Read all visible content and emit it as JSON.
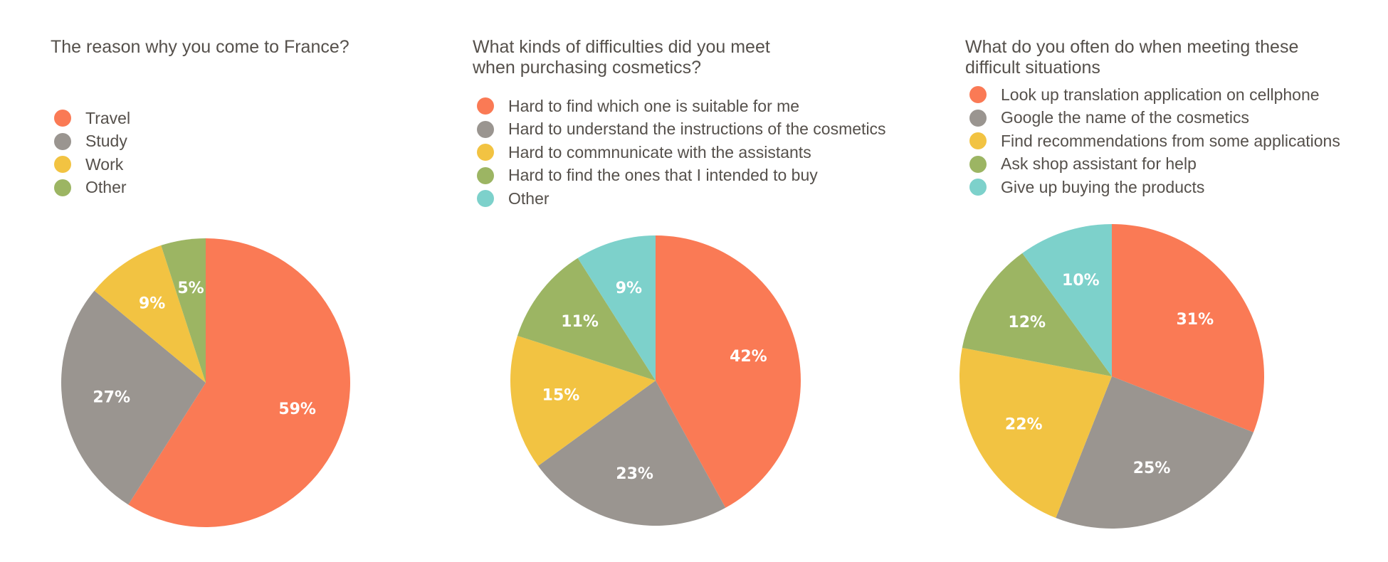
{
  "colors": {
    "orange": "#fa7a55",
    "gray": "#9a9590",
    "yellow": "#f2c342",
    "green": "#9cb563",
    "teal": "#7dd1cb"
  },
  "chart_data": [
    {
      "type": "pie",
      "title": "The reason why you come to France?",
      "legend_position": "top-left",
      "slices": [
        {
          "label": "Travel",
          "value": 59,
          "value_label": "59%",
          "color": "#fa7a55"
        },
        {
          "label": "Study",
          "value": 27,
          "value_label": "27%",
          "color": "#9a9590"
        },
        {
          "label": "Work",
          "value": 9,
          "value_label": "9%",
          "color": "#f2c342"
        },
        {
          "label": "Other",
          "value": 5,
          "value_label": "5%",
          "color": "#9cb563"
        }
      ]
    },
    {
      "type": "pie",
      "title": "What kinds of difficulties did you meet\nwhen purchasing cosmetics?",
      "legend_position": "top-left",
      "slices": [
        {
          "label": "Hard to find which one is suitable for me",
          "value": 42,
          "value_label": "42%",
          "color": "#fa7a55"
        },
        {
          "label": "Hard to understand the instructions of the cosmetics",
          "value": 23,
          "value_label": "23%",
          "color": "#9a9590"
        },
        {
          "label": "Hard to commnunicate with the assistants",
          "value": 15,
          "value_label": "15%",
          "color": "#f2c342"
        },
        {
          "label": "Hard to find the ones that I intended to buy",
          "value": 11,
          "value_label": "11%",
          "color": "#9cb563"
        },
        {
          "label": "Other",
          "value": 9,
          "value_label": "9%",
          "color": "#7dd1cb"
        }
      ]
    },
    {
      "type": "pie",
      "title": "What do you often do when meeting these\ndifficult situations",
      "legend_position": "top-left",
      "slices": [
        {
          "label": "Look up translation application on cellphone",
          "value": 31,
          "value_label": "31%",
          "color": "#fa7a55"
        },
        {
          "label": "Google the name of the cosmetics",
          "value": 25,
          "value_label": "25%",
          "color": "#9a9590"
        },
        {
          "label": "Find recommendations from some applications",
          "value": 22,
          "value_label": "22%",
          "color": "#f2c342"
        },
        {
          "label": "Ask shop assistant for help",
          "value": 12,
          "value_label": "12%",
          "color": "#9cb563"
        },
        {
          "label": "Give up buying the products",
          "value": 10,
          "value_label": "10%",
          "color": "#7dd1cb"
        }
      ]
    }
  ]
}
